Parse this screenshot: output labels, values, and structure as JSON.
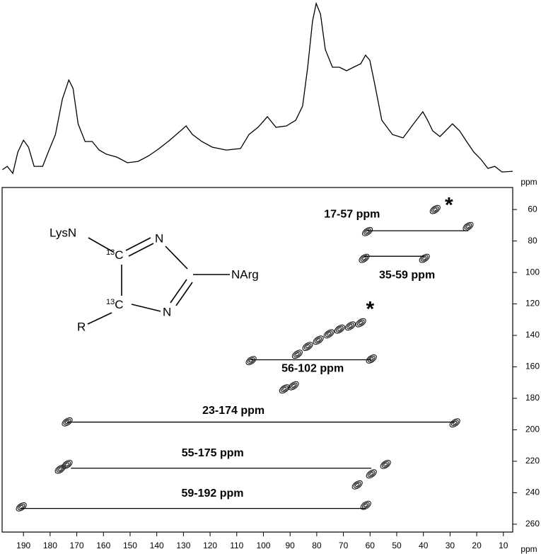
{
  "chart_data": [
    {
      "type": "line",
      "color": "#000000",
      "xlim": [
        198,
        6.5
      ],
      "ylim": [
        0,
        100
      ],
      "x": [
        197.9,
        196.1,
        194.0,
        192.1,
        190.0,
        188.1,
        186.0,
        182.8,
        180.7,
        178.0,
        175.4,
        173.0,
        171.4,
        169.5,
        166.9,
        164.2,
        161.6,
        158.9,
        155.0,
        151.0,
        147.0,
        143.0,
        139.1,
        135.1,
        131.1,
        129.0,
        126.6,
        123.1,
        119.2,
        113.9,
        108.6,
        105.4,
        102.0,
        98.5,
        95.3,
        91.4,
        87.9,
        85.3,
        83.4,
        81.6,
        80.2,
        78.6,
        76.8,
        74.1,
        71.5,
        68.8,
        66.2,
        63.5,
        61.7,
        60.1,
        58.2,
        55.6,
        51.6,
        47.6,
        43.7,
        40.2,
        38.4,
        36.5,
        33.8,
        31.7,
        29.1,
        26.4,
        23.8,
        21.1,
        18.5,
        15.8,
        13.2,
        10.5,
        6.5
      ],
      "values": [
        2.1,
        4.1,
        0,
        12.4,
        19.4,
        15.3,
        4.1,
        4.1,
        12.4,
        22.7,
        43.4,
        54.5,
        49.6,
        28.9,
        18.6,
        18.6,
        13.6,
        11.2,
        9.5,
        6.2,
        7.0,
        10.3,
        14.5,
        19.4,
        24.8,
        27.7,
        22.7,
        18.6,
        15.3,
        13.6,
        14.5,
        22.7,
        26.9,
        33.1,
        26.9,
        27.7,
        31.0,
        39.3,
        62.0,
        88.8,
        99.2,
        93.0,
        72.3,
        62.0,
        62.0,
        59.9,
        62.0,
        64.0,
        69.0,
        66.1,
        51.7,
        31.0,
        22.7,
        20.7,
        28.9,
        36.0,
        31.0,
        24.8,
        21.5,
        24.8,
        28.9,
        24.8,
        18.6,
        12.4,
        8.3,
        2.9,
        4.1,
        0.8,
        1.2
      ]
    },
    {
      "type": "contour",
      "color": "#000000",
      "x_label": "ppm",
      "y_label": "ppm",
      "xlim": [
        198,
        6.5
      ],
      "ylim": [
        46,
        265
      ],
      "xticks": [
        190,
        180,
        170,
        160,
        150,
        140,
        130,
        120,
        110,
        100,
        90,
        80,
        70,
        60,
        50,
        40,
        30,
        20,
        10
      ],
      "yticks": [
        60,
        80,
        100,
        120,
        140,
        160,
        180,
        200,
        220,
        240,
        260
      ],
      "peaks": {
        "x": [
          35.6,
          23.2,
          61.0,
          62.2,
          39.6,
          87.3,
          83.4,
          79.4,
          75.4,
          71.4,
          67.4,
          63.5,
          104.6,
          59.5,
          92.1,
          88.7,
          173.6,
          28.2,
          176.2,
          173.6,
          59.5,
          54.2,
          64.8,
          190.8,
          61.6
        ],
        "y": [
          60,
          70.8,
          74,
          91,
          91,
          152,
          147,
          143,
          139,
          136,
          134,
          132,
          156,
          155,
          174,
          172,
          195,
          195.6,
          225,
          222,
          228,
          222,
          235,
          249,
          248
        ]
      },
      "correlations": [
        {
          "label": "17-57 ppm",
          "x": [
            61.0,
            23.2
          ],
          "y": 73.5
        },
        {
          "label": "35-59 ppm",
          "x": [
            62.2,
            39.6
          ],
          "y": 89.7
        },
        {
          "label": "56-102 ppm",
          "x": [
            104.6,
            59.5
          ],
          "y": 155.5
        },
        {
          "label": "23-174 ppm",
          "x": [
            173.6,
            28.2
          ],
          "y": 195.1
        },
        {
          "label": "55-175 ppm",
          "x": [
            172.2,
            59.5
          ],
          "y": 224.4
        },
        {
          "label": "59-192 ppm",
          "x": [
            190.8,
            61.7
          ],
          "y": 250
        }
      ],
      "annotations": [
        {
          "text": "*",
          "x": 30.4,
          "y": 58
        },
        {
          "text": "*",
          "x": 60.0,
          "y": 124
        }
      ]
    }
  ],
  "structure": {
    "lys": "LysN",
    "arg": "NArg",
    "nitrogen": "N",
    "r_group": "R",
    "isotope": "13",
    "carbon": "C"
  }
}
